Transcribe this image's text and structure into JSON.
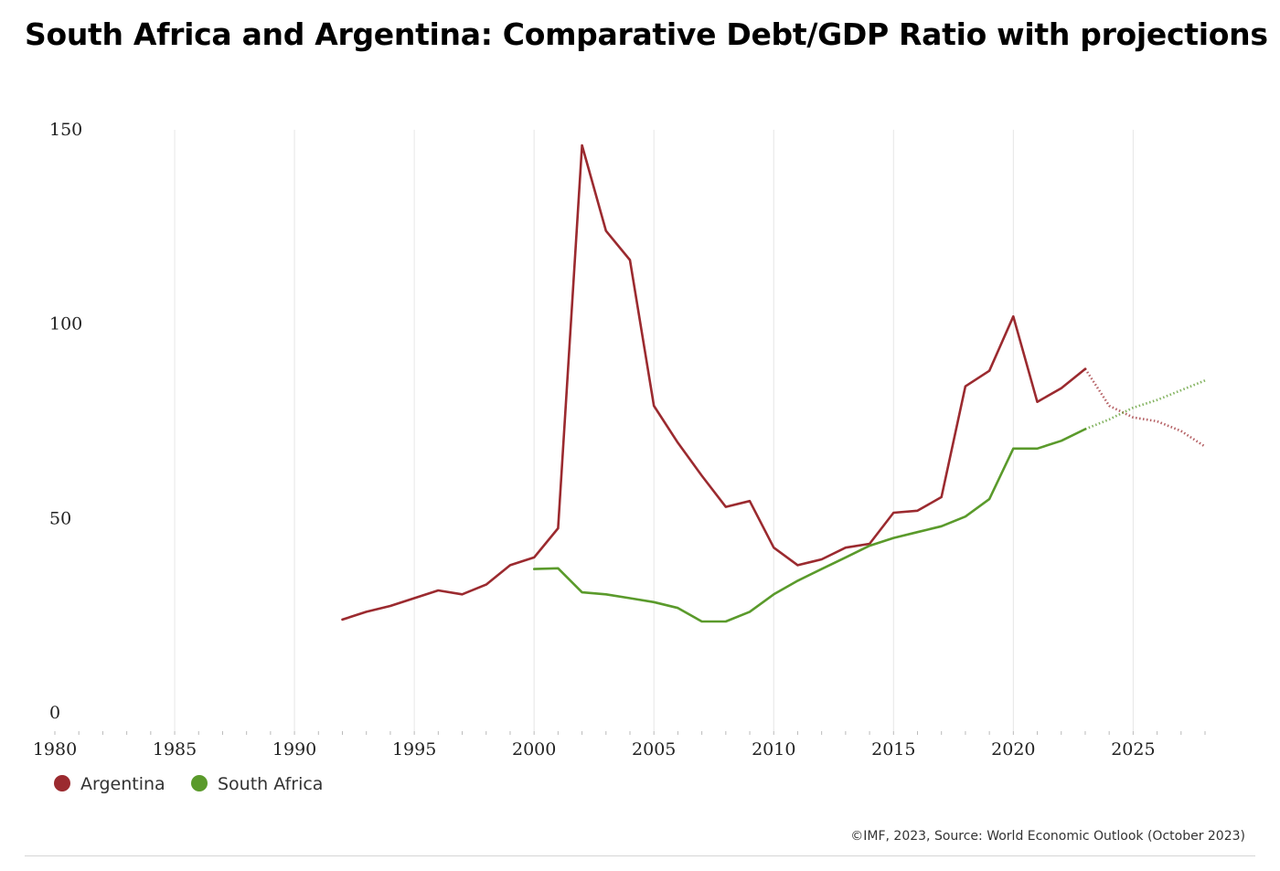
{
  "title": "South Africa and Argentina: Comparative Debt/GDP Ratio with projections",
  "source": "©IMF, 2023, Source: World Economic Outlook (October 2023)",
  "chart_data": {
    "type": "line",
    "title": "South Africa and Argentina: Comparative Debt/GDP Ratio with projections",
    "xlabel": "",
    "ylabel": "",
    "xlim": [
      1980,
      2028
    ],
    "ylim": [
      0,
      150
    ],
    "x_ticks": [
      "1980",
      "1985",
      "1990",
      "1995",
      "2000",
      "2005",
      "2010",
      "2015",
      "2020",
      "2025"
    ],
    "y_ticks": [
      "0",
      "50",
      "100",
      "150"
    ],
    "grid": "vertical",
    "legend_position": "bottom-left",
    "projection_start": 2023,
    "series": [
      {
        "name": "Argentina",
        "color": "#9b2a2f",
        "x": [
          1992,
          1993,
          1994,
          1995,
          1996,
          1997,
          1998,
          1999,
          2000,
          2001,
          2002,
          2003,
          2004,
          2005,
          2006,
          2007,
          2008,
          2009,
          2010,
          2011,
          2012,
          2013,
          2014,
          2015,
          2016,
          2017,
          2018,
          2019,
          2020,
          2021,
          2022,
          2023,
          2024,
          2025,
          2026,
          2027,
          2028
        ],
        "values": [
          24,
          26,
          27.5,
          29.5,
          31.5,
          30.5,
          33,
          38,
          40,
          47.5,
          146,
          124,
          116.5,
          79,
          69.5,
          61,
          53,
          54.5,
          42.5,
          38,
          39.5,
          42.5,
          43.5,
          51.5,
          52,
          55.5,
          84,
          88,
          102,
          80,
          83.5,
          88.5,
          79,
          76,
          75,
          72.5,
          68.5
        ]
      },
      {
        "name": "South Africa",
        "color": "#5a9a2b",
        "x": [
          2000,
          2001,
          2002,
          2003,
          2004,
          2005,
          2006,
          2007,
          2008,
          2009,
          2010,
          2011,
          2012,
          2013,
          2014,
          2015,
          2016,
          2017,
          2018,
          2019,
          2020,
          2021,
          2022,
          2023,
          2024,
          2025,
          2026,
          2027,
          2028
        ],
        "values": [
          37,
          37.2,
          31,
          30.5,
          29.5,
          28.5,
          27,
          23.5,
          23.5,
          26,
          30.5,
          34,
          37,
          40,
          43,
          45,
          46.5,
          48,
          50.5,
          55,
          68,
          68,
          70,
          73,
          75.5,
          78.5,
          80.5,
          83,
          85.5
        ]
      }
    ]
  }
}
